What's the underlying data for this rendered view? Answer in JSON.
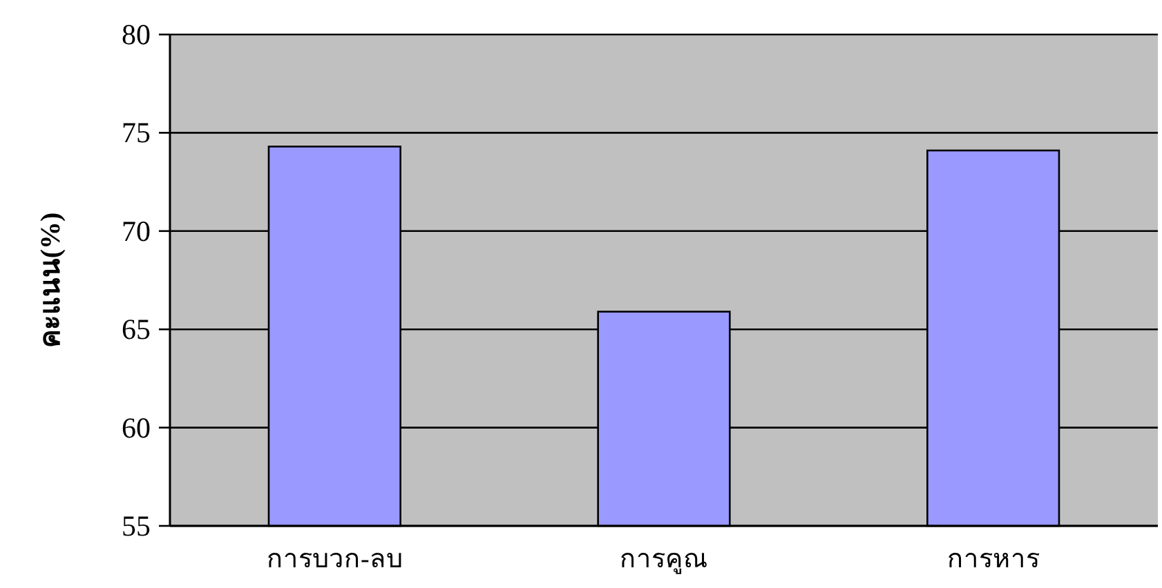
{
  "chart_data": {
    "type": "bar",
    "ylabel": "คะแนน(%)",
    "categories": [
      "การบวก-ลบ",
      "การคูณ",
      "การหาร"
    ],
    "values": [
      74.3,
      65.9,
      74.1
    ],
    "color": "#9999ff",
    "ylim": [
      55,
      80
    ],
    "yticks": [
      55,
      60,
      65,
      70,
      75,
      80
    ],
    "grid": "y"
  }
}
